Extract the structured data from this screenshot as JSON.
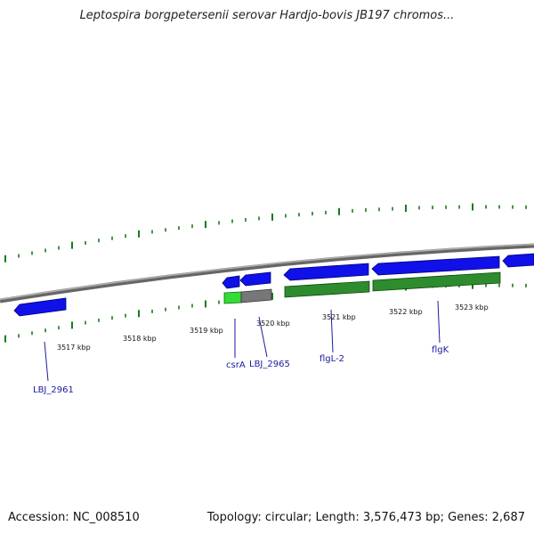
{
  "title": "Leptospira borgpetersenii serovar Hardjo-bovis JB197 chromos...",
  "footer": {
    "accession": "Accession: NC_008510",
    "topology": "Topology: circular; Length: 3,576,473 bp; Genes: 2,687"
  },
  "colors": {
    "gene_blue": "#1010e8",
    "cds_green": "#2e8b2e",
    "cds_light_green": "#33dd33",
    "pseudo_gray": "#777777",
    "tick_green": "#1a7a1a",
    "backbone_gray": "#8a8a8a",
    "label_blue": "#1a1aa0"
  },
  "scale_labels": [
    "3517 kbp",
    "3518 kbp",
    "3519 kbp",
    "3520 kbp",
    "3521 kbp",
    "3522 kbp",
    "3523 kbp"
  ],
  "genes": [
    {
      "name": "LBJ_2961",
      "track": "blue"
    },
    {
      "name": "csrA",
      "track": "blue"
    },
    {
      "name": "LBJ_2965",
      "track": "blue"
    },
    {
      "name": "flgL-2",
      "track": "blue"
    },
    {
      "name": "flgK",
      "track": "blue"
    }
  ]
}
